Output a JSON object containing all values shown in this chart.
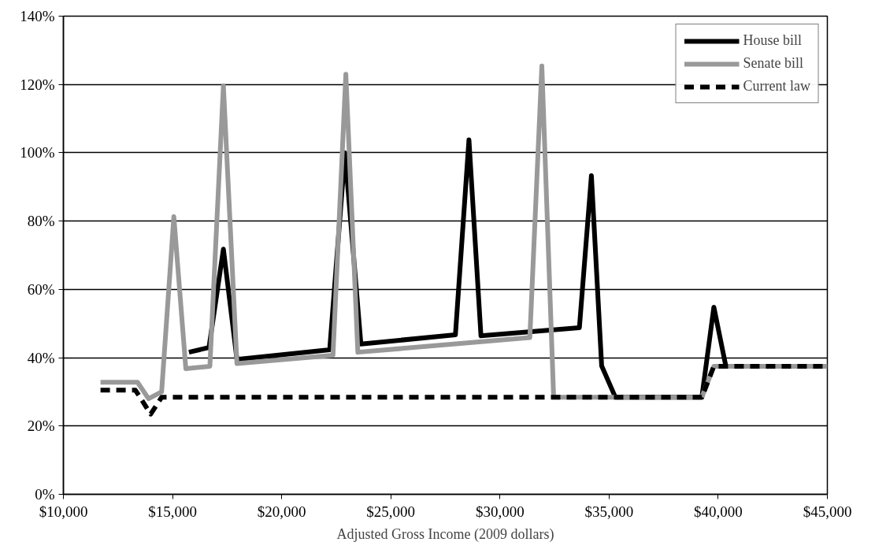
{
  "chart_data": {
    "type": "line",
    "xlabel": "Adjusted Gross Income (2009 dollars)",
    "xlim": [
      10000,
      45000
    ],
    "xticks": [
      {
        "value": 10000,
        "label": "$10,000"
      },
      {
        "value": 15000,
        "label": "$15,000"
      },
      {
        "value": 20000,
        "label": "$20,000"
      },
      {
        "value": 25000,
        "label": "$25,000"
      },
      {
        "value": 30000,
        "label": "$30,000"
      },
      {
        "value": 35000,
        "label": "$35,000"
      },
      {
        "value": 40000,
        "label": "$40,000"
      },
      {
        "value": 45000,
        "label": "$45,000"
      }
    ],
    "ylim": [
      0,
      140
    ],
    "yticks": [
      {
        "value": 0,
        "label": "0%"
      },
      {
        "value": 20,
        "label": "20%"
      },
      {
        "value": 40,
        "label": "40%"
      },
      {
        "value": 60,
        "label": "60%"
      },
      {
        "value": 80,
        "label": "80%"
      },
      {
        "value": 100,
        "label": "100%"
      },
      {
        "value": 120,
        "label": "120%"
      },
      {
        "value": 140,
        "label": "140%"
      }
    ],
    "grid": "y",
    "legend": "top right",
    "series": [
      {
        "name": "House bill",
        "color": "#000000",
        "line_style": "solid",
        "x": [
          15750,
          16670,
          17330,
          17950,
          22200,
          22900,
          23630,
          27960,
          28580,
          29130,
          33640,
          34190,
          34660,
          35290,
          39250,
          39800,
          40350,
          45000
        ],
        "values": [
          41.6,
          43,
          71.8,
          39.5,
          42.3,
          100,
          44,
          46.7,
          103.8,
          46.4,
          48.8,
          93.3,
          37.6,
          28.4,
          28.4,
          54.8,
          37.5,
          37.5
        ]
      },
      {
        "name": "Senate bill",
        "color": "#999999",
        "line_style": "solid",
        "x": [
          11700,
          13400,
          13900,
          14500,
          15060,
          15610,
          16710,
          17330,
          17950,
          22350,
          22940,
          23490,
          31370,
          31920,
          32460,
          39250,
          39800,
          45000
        ],
        "values": [
          32.8,
          32.8,
          28,
          30,
          81.3,
          36.8,
          37.5,
          119.6,
          38.3,
          40.7,
          123,
          41.6,
          45.9,
          125.4,
          28.4,
          28.4,
          37.5,
          37.5
        ]
      },
      {
        "name": "Current law",
        "color": "#000000",
        "line_style": "dashed",
        "x": [
          11700,
          13300,
          14000,
          14500,
          39250,
          39800,
          45000
        ],
        "values": [
          30.5,
          30.5,
          23.5,
          28.4,
          28.4,
          37.5,
          37.5
        ]
      }
    ]
  }
}
